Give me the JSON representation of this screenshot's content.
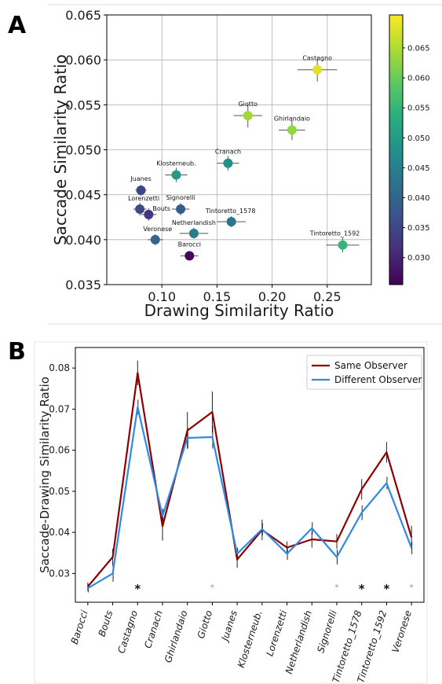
{
  "panels": {
    "a_letter": "A",
    "b_letter": "B"
  },
  "chart_data": [
    {
      "type": "scatter",
      "panel": "A",
      "xlabel": "Drawing Similarity Ratio",
      "ylabel": "Saccade Similarity Ratio",
      "xlim": [
        0.05,
        0.29
      ],
      "ylim": [
        0.035,
        0.065
      ],
      "xticks": [
        0.1,
        0.15,
        0.2,
        0.25
      ],
      "xtick_labels": [
        "0.10",
        "0.15",
        "0.20",
        "0.25"
      ],
      "yticks": [
        0.035,
        0.04,
        0.045,
        0.05,
        0.055,
        0.06,
        0.065
      ],
      "ytick_labels": [
        "0.035",
        "0.040",
        "0.045",
        "0.050",
        "0.055",
        "0.060",
        "0.065"
      ],
      "grid": true,
      "colorbar": {
        "colormap": "viridis",
        "range": [
          0.0255,
          0.0705
        ],
        "ticks": [
          0.03,
          0.035,
          0.04,
          0.045,
          0.05,
          0.055,
          0.06,
          0.065
        ],
        "tick_labels": [
          "0.030",
          "0.035",
          "0.040",
          "0.045",
          "0.050",
          "0.055",
          "0.060",
          "0.065"
        ]
      },
      "points": [
        {
          "label": "Castagno",
          "x": 0.241,
          "y": 0.0589,
          "xerr": 0.018,
          "yerr": 0.0013,
          "c": 0.0685
        },
        {
          "label": "Giotto",
          "x": 0.178,
          "y": 0.0538,
          "xerr": 0.013,
          "yerr": 0.0013,
          "c": 0.064
        },
        {
          "label": "Ghirlandaio",
          "x": 0.218,
          "y": 0.0522,
          "xerr": 0.012,
          "yerr": 0.0011,
          "c": 0.063
        },
        {
          "label": "Cranach",
          "x": 0.16,
          "y": 0.0485,
          "xerr": 0.01,
          "yerr": 0.0008,
          "c": 0.048
        },
        {
          "label": "Klosterneub.",
          "x": 0.113,
          "y": 0.0472,
          "xerr": 0.01,
          "yerr": 0.0008,
          "c": 0.05
        },
        {
          "label": "Juanes",
          "x": 0.081,
          "y": 0.0455,
          "xerr": 0.005,
          "yerr": 0.0006,
          "c": 0.035
        },
        {
          "label": "Lorenzetti",
          "x": 0.08,
          "y": 0.0434,
          "xerr": 0.006,
          "yerr": 0.0007,
          "c": 0.0355
        },
        {
          "label": "Bouts",
          "x": 0.088,
          "y": 0.0428,
          "xerr": 0.007,
          "yerr": 0.0007,
          "c": 0.0325
        },
        {
          "label": "Signorelli",
          "x": 0.117,
          "y": 0.0434,
          "xerr": 0.008,
          "yerr": 0.0007,
          "c": 0.0385
        },
        {
          "label": "Tintoretto_1578",
          "x": 0.163,
          "y": 0.042,
          "xerr": 0.013,
          "yerr": 0.0006,
          "c": 0.043
        },
        {
          "label": "Netherlandish",
          "x": 0.129,
          "y": 0.0407,
          "xerr": 0.013,
          "yerr": 0.0006,
          "c": 0.044
        },
        {
          "label": "Veronese",
          "x": 0.094,
          "y": 0.04,
          "xerr": 0.007,
          "yerr": 0.0006,
          "c": 0.04
        },
        {
          "label": "Barocci",
          "x": 0.125,
          "y": 0.0382,
          "xerr": 0.008,
          "yerr": 0.0004,
          "c": 0.0265
        },
        {
          "label": "Tintoretto_1592",
          "x": 0.264,
          "y": 0.0394,
          "xerr": 0.015,
          "yerr": 0.0008,
          "c": 0.055
        }
      ]
    },
    {
      "type": "line",
      "panel": "B",
      "ylabel": "Saccade-Drawing Similarity Ratio",
      "ylim": [
        0.023,
        0.085
      ],
      "yticks": [
        0.03,
        0.04,
        0.05,
        0.06,
        0.07,
        0.08
      ],
      "ytick_labels": [
        "0.03",
        "0.04",
        "0.05",
        "0.06",
        "0.07",
        "0.08"
      ],
      "grid": false,
      "legend_position": "top-right",
      "categories": [
        "Barocci",
        "Bouts",
        "Castagno",
        "Cranach",
        "Ghirlandaio",
        "Giotto",
        "Juanes",
        "Klosterneub.",
        "Lorenzetti",
        "Netherlandish",
        "Signorelli",
        "Tintoretto_1578",
        "Tintoretto_1592",
        "Veronese"
      ],
      "series": [
        {
          "name": "Same Observer",
          "color": "#8b0000",
          "values": [
            0.0268,
            0.034,
            0.0788,
            0.0415,
            0.0648,
            0.0693,
            0.0334,
            0.0406,
            0.0363,
            0.0383,
            0.0378,
            0.0505,
            0.0595,
            0.0388
          ],
          "errors": [
            0.001,
            0.002,
            0.003,
            0.0035,
            0.0045,
            0.005,
            0.002,
            0.0025,
            0.0015,
            0.002,
            0.0018,
            0.0025,
            0.0025,
            0.0028
          ]
        },
        {
          "name": "Different Observer",
          "color": "#2e8ae6",
          "values": [
            0.0264,
            0.03,
            0.0705,
            0.044,
            0.063,
            0.0632,
            0.0348,
            0.0408,
            0.0348,
            0.041,
            0.034,
            0.0448,
            0.052,
            0.0362
          ],
          "errors": [
            0.001,
            0.002,
            0.0018,
            0.0018,
            0.0025,
            0.0028,
            0.0015,
            0.0015,
            0.0015,
            0.0015,
            0.0018,
            0.0018,
            0.0015,
            0.0015
          ]
        }
      ],
      "significance": [
        "",
        "",
        "*",
        "",
        "",
        "*",
        "",
        "",
        "",
        "",
        "*",
        "*",
        "*",
        "*"
      ],
      "significance_strong": [
        false,
        false,
        true,
        false,
        false,
        false,
        false,
        false,
        false,
        false,
        false,
        true,
        true,
        false
      ]
    }
  ]
}
